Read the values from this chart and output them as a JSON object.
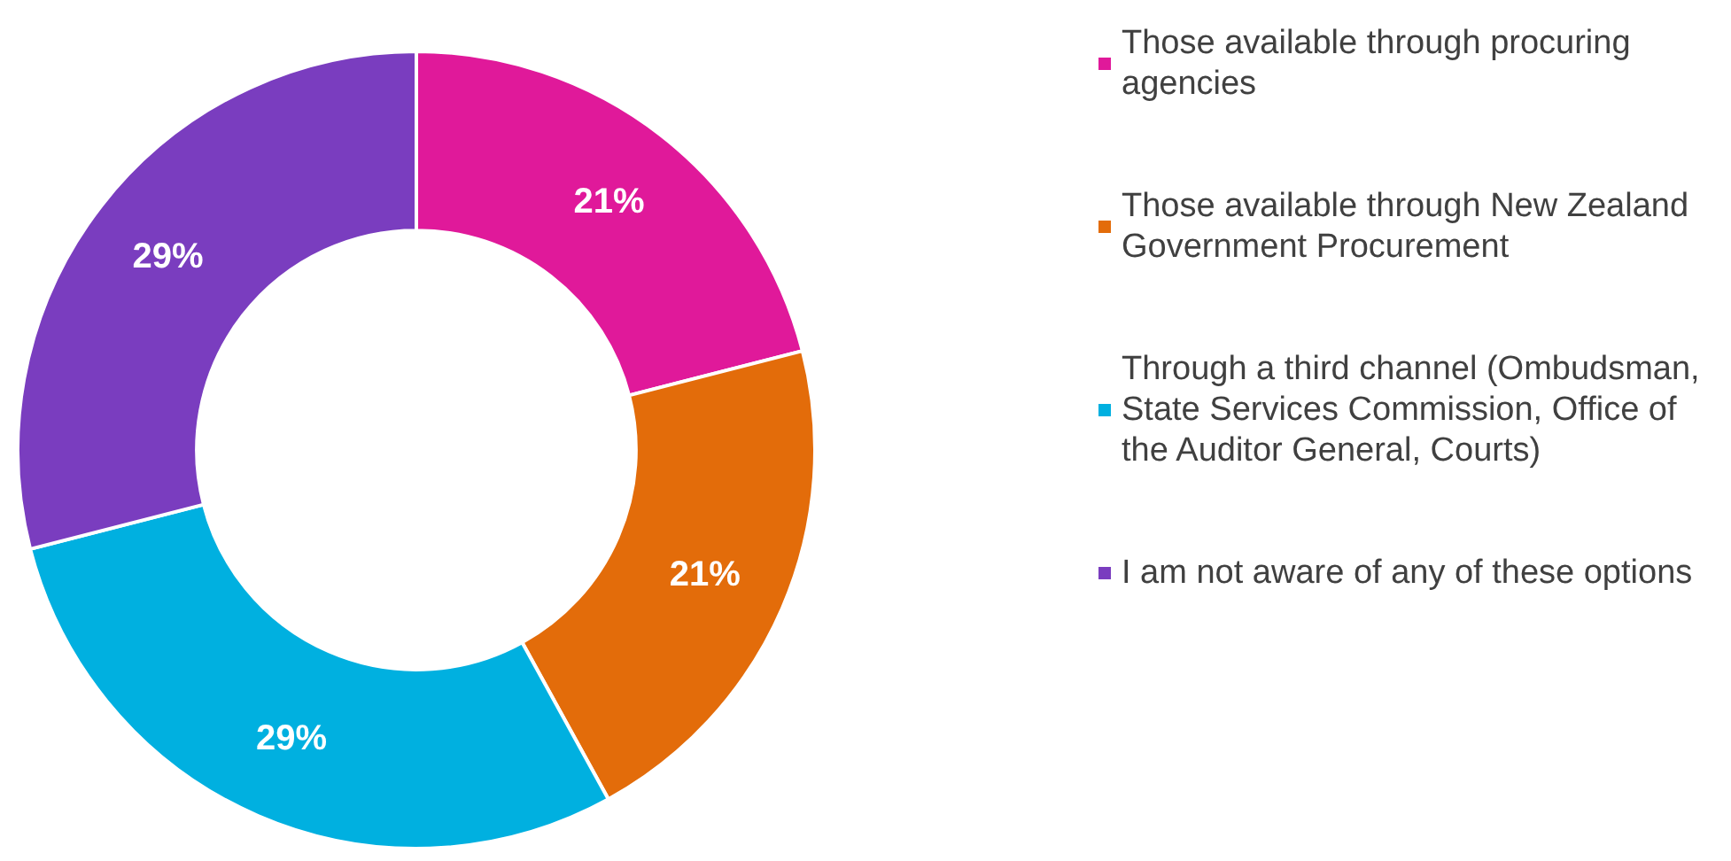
{
  "chart_data": {
    "type": "donut",
    "categories": [
      "Those available through procuring agencies",
      "Those available through New Zealand Government Procurement",
      "Through a third channel (Ombudsman, State Services Commission, Office of the Auditor General, Courts)",
      "I am not aware of any of these options"
    ],
    "values": [
      21,
      21,
      29,
      29
    ],
    "value_labels": [
      "21%",
      "21%",
      "29%",
      "29%"
    ],
    "colors": [
      "#e0199a",
      "#e36c0a",
      "#00b0e0",
      "#7a3dbf"
    ],
    "legend": "right"
  }
}
